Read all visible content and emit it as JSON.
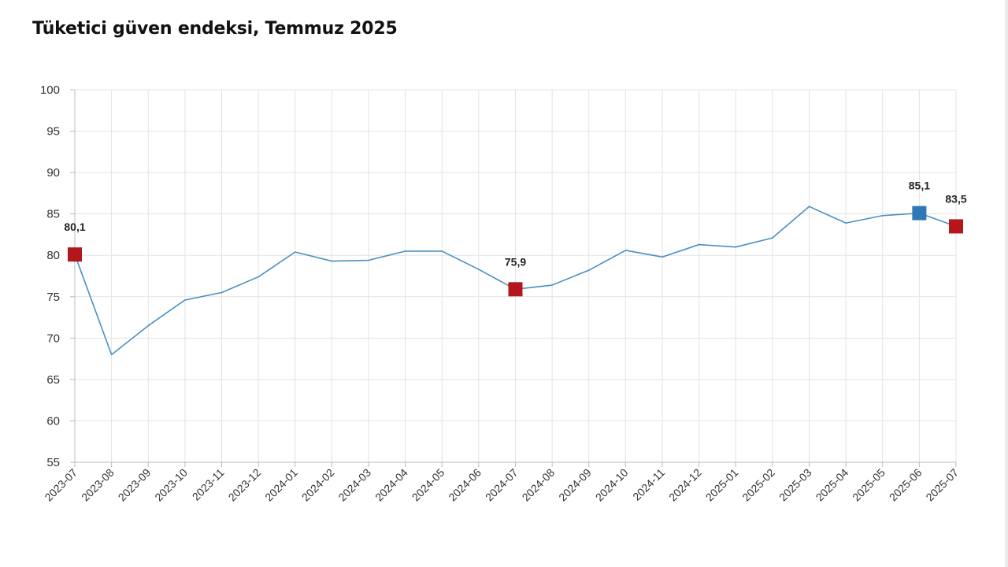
{
  "title": "Tüketici güven endeksi, Temmuz 2025",
  "chart_data": {
    "type": "line",
    "title": "Tüketici güven endeksi, Temmuz 2025",
    "xlabel": "",
    "ylabel": "",
    "ylim": [
      55,
      100
    ],
    "yticks": [
      "100",
      "95",
      "90",
      "85",
      "80",
      "75",
      "70",
      "65",
      "60",
      "55"
    ],
    "x": [
      "2023-07",
      "2023-08",
      "2023-09",
      "2023-10",
      "2023-11",
      "2023-12",
      "2024-01",
      "2024-02",
      "2024-03",
      "2024-04",
      "2024-05",
      "2024-06",
      "2024-07",
      "2024-08",
      "2024-09",
      "2024-10",
      "2024-11",
      "2024-12",
      "2025-01",
      "2025-02",
      "2025-03",
      "2025-04",
      "2025-05",
      "2025-06",
      "2025-07"
    ],
    "series": [
      {
        "values": [
          80.1,
          68.0,
          71.5,
          74.6,
          75.5,
          77.4,
          80.4,
          79.3,
          79.4,
          80.5,
          80.5,
          78.3,
          75.9,
          76.4,
          78.2,
          80.6,
          79.8,
          81.3,
          81.0,
          82.1,
          85.9,
          83.9,
          84.8,
          85.1,
          83.5
        ],
        "color": "#4a8fc2"
      }
    ],
    "highlights": [
      {
        "x": "2023-07",
        "value": 80.1,
        "label": "80,1",
        "color": "#b5161b"
      },
      {
        "x": "2024-07",
        "value": 75.9,
        "label": "75,9",
        "color": "#b5161b"
      },
      {
        "x": "2025-06",
        "value": 85.1,
        "label": "85,1",
        "color": "#2f78b7"
      },
      {
        "x": "2025-07",
        "value": 83.5,
        "label": "83,5",
        "color": "#b5161b"
      }
    ],
    "grid": true,
    "legend": "none"
  }
}
